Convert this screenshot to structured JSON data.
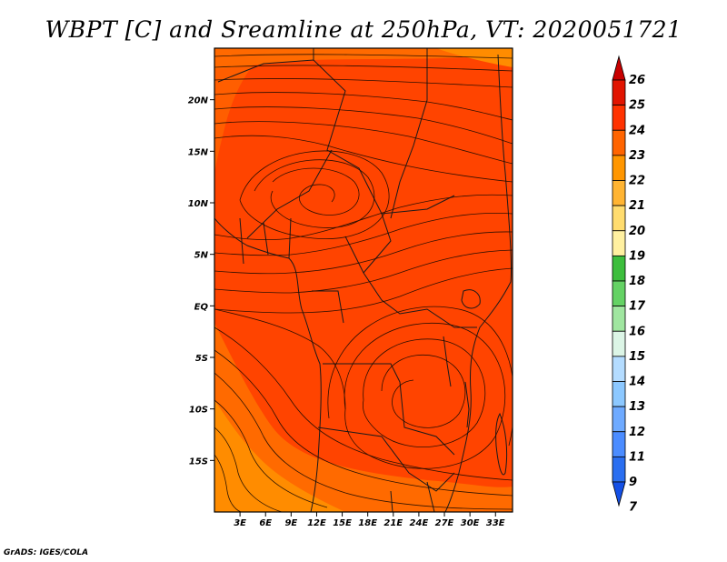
{
  "title": "WBPT [C] and Sreamline at 250hPa, VT: 2020051721",
  "footer": "GrADS: IGES/COLA",
  "map": {
    "lon_range": [
      0,
      35
    ],
    "lat_range": [
      -20,
      25
    ],
    "lon_ticks": [
      {
        "v": 3,
        "label": "3E"
      },
      {
        "v": 6,
        "label": "6E"
      },
      {
        "v": 9,
        "label": "9E"
      },
      {
        "v": 12,
        "label": "12E"
      },
      {
        "v": 15,
        "label": "15E"
      },
      {
        "v": 18,
        "label": "18E"
      },
      {
        "v": 21,
        "label": "21E"
      },
      {
        "v": 24,
        "label": "24E"
      },
      {
        "v": 27,
        "label": "27E"
      },
      {
        "v": 30,
        "label": "30E"
      },
      {
        "v": 33,
        "label": "33E"
      }
    ],
    "lat_ticks": [
      {
        "v": 20,
        "label": "20N"
      },
      {
        "v": 15,
        "label": "15N"
      },
      {
        "v": 10,
        "label": "10N"
      },
      {
        "v": 5,
        "label": "5N"
      },
      {
        "v": 0,
        "label": "EQ"
      },
      {
        "v": -5,
        "label": "5S"
      },
      {
        "v": -10,
        "label": "10S"
      },
      {
        "v": -15,
        "label": "15S"
      }
    ],
    "colors": {
      "wbpt_23_24": "#ff4400",
      "wbpt_22_23": "#ff6a00",
      "wbpt_21_22": "#ff8c00",
      "boundary": "#1a1a1a",
      "streamline": "#1a0a00"
    }
  },
  "colorbar": {
    "levels": [
      "26",
      "25",
      "24",
      "23",
      "22",
      "21",
      "20",
      "19",
      "18",
      "17",
      "16",
      "15",
      "14",
      "13",
      "12",
      "11",
      "9",
      "7"
    ],
    "colors": [
      "#c80000",
      "#e11400",
      "#ff3200",
      "#ff6400",
      "#ff9600",
      "#ffb432",
      "#ffdc6e",
      "#fff0a0",
      "#3cbe3c",
      "#64d264",
      "#a0e6a0",
      "#dcf5e6",
      "#b4dcff",
      "#8cc8ff",
      "#6eaaff",
      "#4b8cff",
      "#2a6ef0",
      "#1450e6"
    ]
  }
}
